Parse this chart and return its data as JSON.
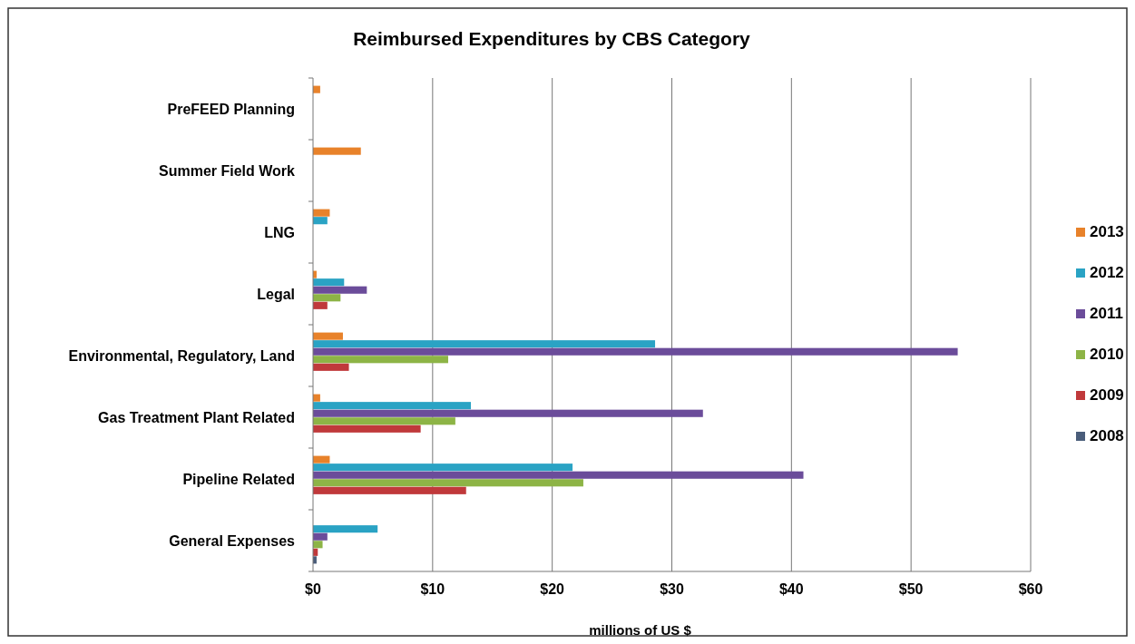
{
  "chart_data": {
    "type": "bar",
    "orientation": "horizontal",
    "title": "Reimbursed Expenditures by CBS Category",
    "xlabel": "millions of US $",
    "categories": [
      "PreFEED Planning",
      "Summer Field Work",
      "LNG",
      "Legal",
      "Environmental, Regulatory, Land",
      "Gas Treatment Plant Related",
      "Pipeline Related",
      "General Expenses"
    ],
    "series": [
      {
        "name": "2013",
        "color": "#e8822a",
        "values": [
          0.6,
          4.0,
          1.4,
          0.3,
          2.5,
          0.6,
          1.4,
          null
        ]
      },
      {
        "name": "2012",
        "color": "#2aa3c4",
        "values": [
          null,
          null,
          1.2,
          2.6,
          28.6,
          13.2,
          21.7,
          5.4
        ]
      },
      {
        "name": "2011",
        "color": "#6b4c9a",
        "values": [
          null,
          null,
          null,
          4.5,
          53.9,
          32.6,
          41.0,
          1.2
        ]
      },
      {
        "name": "2010",
        "color": "#8db446",
        "values": [
          null,
          null,
          null,
          2.3,
          11.3,
          11.9,
          22.6,
          0.8
        ]
      },
      {
        "name": "2009",
        "color": "#c0393b",
        "values": [
          null,
          null,
          null,
          1.2,
          3.0,
          9.0,
          12.8,
          0.4
        ]
      },
      {
        "name": "2008",
        "color": "#4a5d7a",
        "values": [
          null,
          null,
          null,
          null,
          null,
          null,
          null,
          0.3
        ]
      }
    ],
    "xlim": [
      0,
      60
    ],
    "xticks": [
      {
        "value": 0,
        "label": "$0"
      },
      {
        "value": 10,
        "label": "$10"
      },
      {
        "value": 20,
        "label": "$20"
      },
      {
        "value": 30,
        "label": "$30"
      },
      {
        "value": 40,
        "label": "$40"
      },
      {
        "value": 50,
        "label": "$50"
      },
      {
        "value": 60,
        "label": "$60"
      }
    ],
    "grid": "x",
    "legend": "right"
  }
}
